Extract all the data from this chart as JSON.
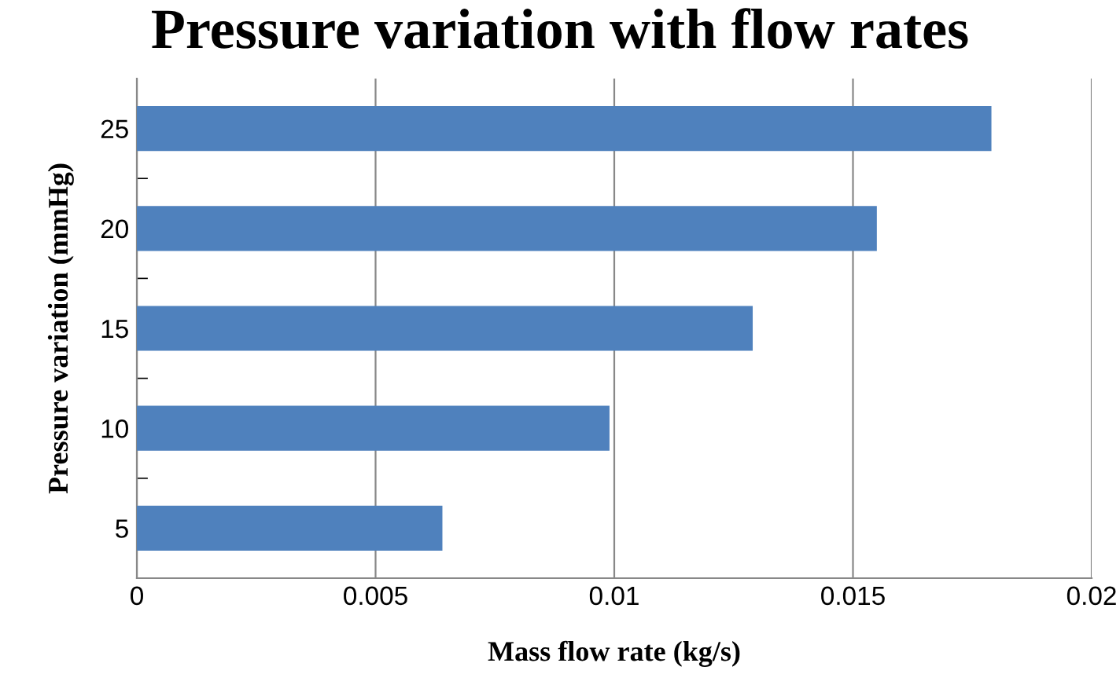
{
  "chart_data": {
    "type": "bar",
    "orientation": "horizontal",
    "title": "Pressure variation with flow rates",
    "xlabel": "Mass flow rate (kg/s)",
    "ylabel": "Pressure variation (mmHg)",
    "categories": [
      "25",
      "20",
      "15",
      "10",
      "5"
    ],
    "series": [
      {
        "color": "#4f81bd",
        "values": [
          0.0179,
          0.0155,
          0.0129,
          0.0099,
          0.0064
        ]
      }
    ],
    "xlim": [
      0,
      0.02
    ],
    "xticks": [
      0,
      0.005,
      0.01,
      0.015,
      0.02
    ],
    "grid": "x",
    "legend": false
  }
}
